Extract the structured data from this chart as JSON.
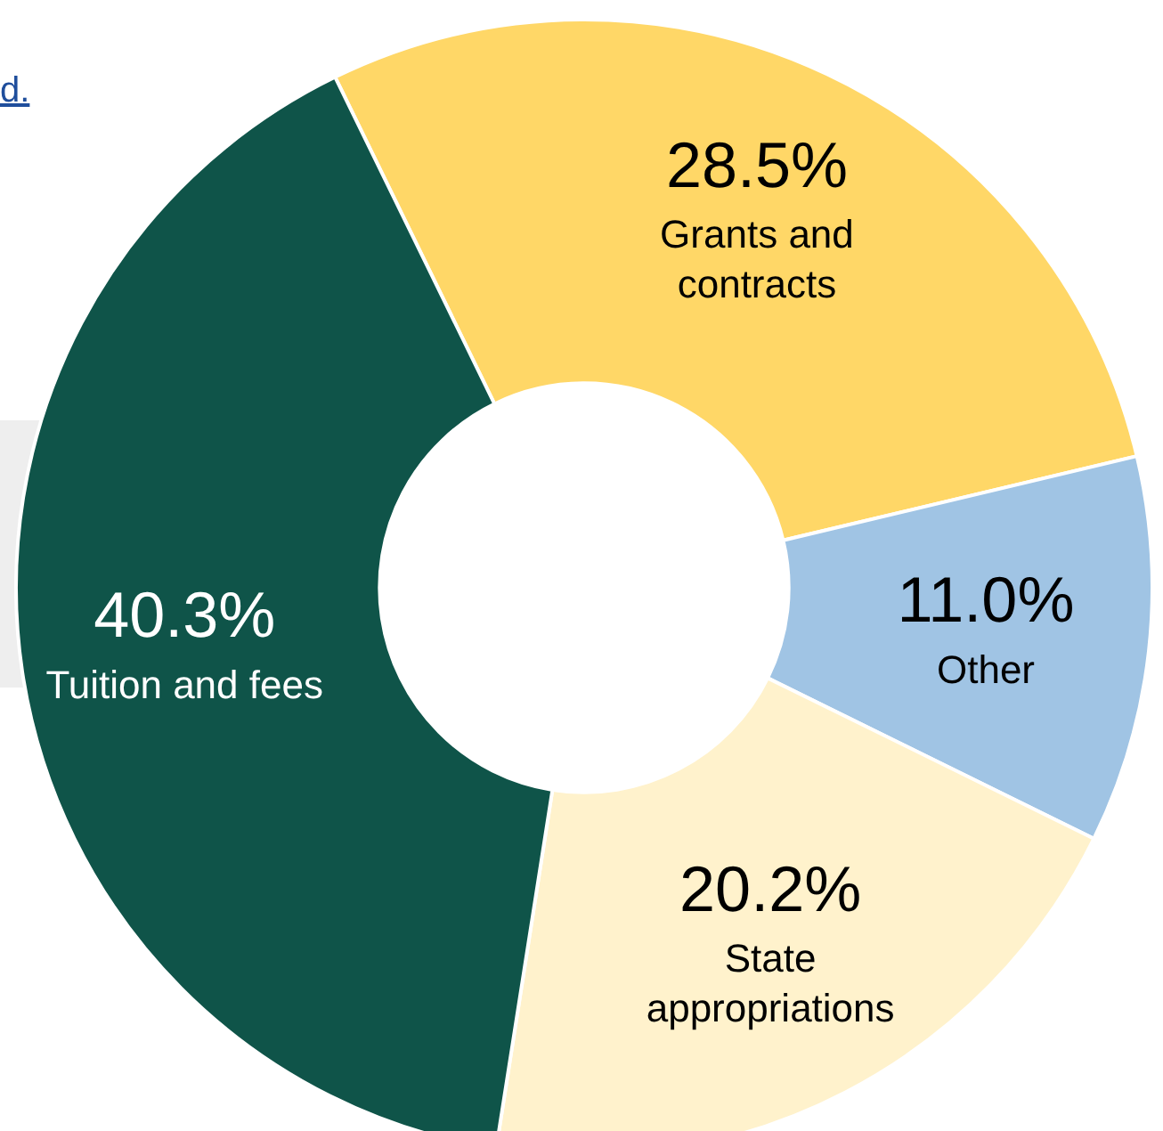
{
  "chart_data": {
    "type": "donut",
    "categories": [
      "Grants and contracts",
      "Other",
      "State appropriations",
      "Tuition and fees"
    ],
    "values": [
      28.5,
      11.0,
      20.2,
      40.3
    ],
    "value_labels": [
      "28.5%",
      "11.0%",
      "20.2%",
      "40.3%"
    ],
    "colors": [
      "#ffd767",
      "#a0c4e4",
      "#fff2cc",
      "#0f5449"
    ],
    "legend": false,
    "annotations": [
      "d."
    ]
  }
}
